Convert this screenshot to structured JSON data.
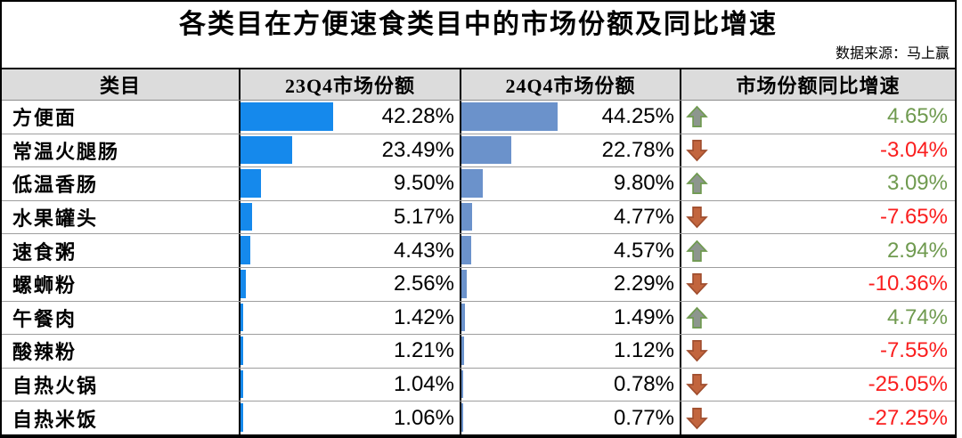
{
  "title": "各类目在方便速食类目中的市场份额及同比增速",
  "source_note": "数据来源：马上赢",
  "colors": {
    "bar_23q4": "#1589ec",
    "bar_24q4": "#6b92cb",
    "positive_text": "#6f9a4f",
    "negative_text": "#fa1e1e",
    "header_bg": "#dcdcdc",
    "arrow_up_fill": "#8d968e",
    "arrow_up_stroke": "#6f9a4f",
    "arrow_down_fill": "#c2653e",
    "arrow_down_stroke": "#a04e2e"
  },
  "table": {
    "headers": {
      "category": "类目",
      "q23": "23Q4市场份额",
      "q24": "24Q4市场份额",
      "growth": "市场份额同比增速"
    },
    "rows": [
      {
        "category": "方便面",
        "q23_label": "42.28%",
        "q23_value": 42.28,
        "q24_label": "44.25%",
        "q24_value": 44.25,
        "growth_label": "4.65%",
        "direction": "up"
      },
      {
        "category": "常温火腿肠",
        "q23_label": "23.49%",
        "q23_value": 23.49,
        "q24_label": "22.78%",
        "q24_value": 22.78,
        "growth_label": "-3.04%",
        "direction": "down"
      },
      {
        "category": "低温香肠",
        "q23_label": "9.50%",
        "q23_value": 9.5,
        "q24_label": "9.80%",
        "q24_value": 9.8,
        "growth_label": "3.09%",
        "direction": "up"
      },
      {
        "category": "水果罐头",
        "q23_label": "5.17%",
        "q23_value": 5.17,
        "q24_label": "4.77%",
        "q24_value": 4.77,
        "growth_label": "-7.65%",
        "direction": "down"
      },
      {
        "category": "速食粥",
        "q23_label": "4.43%",
        "q23_value": 4.43,
        "q24_label": "4.57%",
        "q24_value": 4.57,
        "growth_label": "2.94%",
        "direction": "up"
      },
      {
        "category": "螺蛳粉",
        "q23_label": "2.56%",
        "q23_value": 2.56,
        "q24_label": "2.29%",
        "q24_value": 2.29,
        "growth_label": "-10.36%",
        "direction": "down"
      },
      {
        "category": "午餐肉",
        "q23_label": "1.42%",
        "q23_value": 1.42,
        "q24_label": "1.49%",
        "q24_value": 1.49,
        "growth_label": "4.74%",
        "direction": "up"
      },
      {
        "category": "酸辣粉",
        "q23_label": "1.21%",
        "q23_value": 1.21,
        "q24_label": "1.12%",
        "q24_value": 1.12,
        "growth_label": "-7.55%",
        "direction": "down"
      },
      {
        "category": "自热火锅",
        "q23_label": "1.04%",
        "q23_value": 1.04,
        "q24_label": "0.78%",
        "q24_value": 0.78,
        "growth_label": "-25.05%",
        "direction": "down"
      },
      {
        "category": "自热米饭",
        "q23_label": "1.06%",
        "q23_value": 1.06,
        "q24_label": "0.77%",
        "q24_value": 0.77,
        "growth_label": "-27.25%",
        "direction": "down"
      }
    ]
  },
  "chart_data": {
    "type": "table",
    "title": "各类目在方便速食类目中的市场份额及同比增速",
    "source": "数据来源：马上赢",
    "columns": [
      "类目",
      "23Q4市场份额",
      "24Q4市场份额",
      "市场份额同比增速"
    ],
    "categories": [
      "方便面",
      "常温火腿肠",
      "低温香肠",
      "水果罐头",
      "速食粥",
      "螺蛳粉",
      "午餐肉",
      "酸辣粉",
      "自热火锅",
      "自热米饭"
    ],
    "series": [
      {
        "name": "23Q4市场份额",
        "unit": "%",
        "style": "data-bar",
        "values": [
          42.28,
          23.49,
          9.5,
          5.17,
          4.43,
          2.56,
          1.42,
          1.21,
          1.04,
          1.06
        ]
      },
      {
        "name": "24Q4市场份额",
        "unit": "%",
        "style": "data-bar",
        "values": [
          44.25,
          22.78,
          9.8,
          4.77,
          4.57,
          2.29,
          1.49,
          1.12,
          0.78,
          0.77
        ]
      },
      {
        "name": "市场份额同比增速",
        "unit": "%",
        "style": "arrow-icon",
        "values": [
          4.65,
          -3.04,
          3.09,
          -7.65,
          2.94,
          -10.36,
          4.74,
          -7.55,
          -25.05,
          -27.25
        ]
      }
    ],
    "bar_scale": [
      0,
      100
    ],
    "legend_position": "none",
    "grid": "table-borders"
  }
}
